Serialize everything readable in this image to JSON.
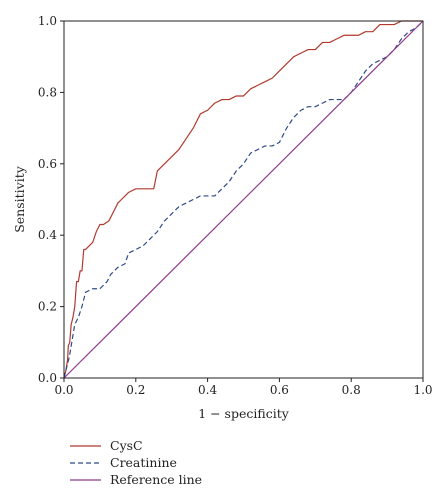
{
  "chart_data": {
    "type": "line",
    "xlabel": "1 − specificity",
    "ylabel": "Sensitivity",
    "xlim": [
      0,
      1
    ],
    "ylim": [
      0,
      1
    ],
    "xticks": [
      "0.0",
      "0.2",
      "0.4",
      "0.6",
      "0.8",
      "1.0"
    ],
    "yticks": [
      "0.0",
      "0.2",
      "0.4",
      "0.6",
      "0.8",
      "1.0"
    ],
    "grid": false,
    "legend_position": "bottom-left",
    "series": [
      {
        "name": "CysC",
        "color": "#b03a2e",
        "dash": "solid",
        "x": [
          0,
          0.005,
          0.01,
          0.012,
          0.016,
          0.02,
          0.025,
          0.03,
          0.035,
          0.04,
          0.045,
          0.05,
          0.055,
          0.06,
          0.07,
          0.08,
          0.09,
          0.1,
          0.11,
          0.125,
          0.14,
          0.15,
          0.16,
          0.18,
          0.2,
          0.22,
          0.25,
          0.26,
          0.28,
          0.3,
          0.32,
          0.34,
          0.36,
          0.38,
          0.4,
          0.42,
          0.44,
          0.46,
          0.48,
          0.5,
          0.52,
          0.54,
          0.56,
          0.58,
          0.6,
          0.62,
          0.64,
          0.66,
          0.68,
          0.7,
          0.72,
          0.74,
          0.76,
          0.78,
          0.8,
          0.82,
          0.84,
          0.86,
          0.88,
          0.9,
          0.92,
          0.94,
          0.96,
          0.98,
          1.0
        ],
        "y": [
          0,
          0.02,
          0.05,
          0.09,
          0.1,
          0.15,
          0.17,
          0.2,
          0.27,
          0.27,
          0.3,
          0.3,
          0.36,
          0.36,
          0.37,
          0.38,
          0.41,
          0.43,
          0.43,
          0.44,
          0.47,
          0.49,
          0.5,
          0.52,
          0.53,
          0.53,
          0.53,
          0.58,
          0.6,
          0.62,
          0.64,
          0.67,
          0.7,
          0.74,
          0.75,
          0.77,
          0.78,
          0.78,
          0.79,
          0.79,
          0.81,
          0.82,
          0.83,
          0.84,
          0.86,
          0.88,
          0.9,
          0.91,
          0.92,
          0.92,
          0.94,
          0.94,
          0.95,
          0.96,
          0.96,
          0.96,
          0.97,
          0.97,
          0.99,
          0.99,
          0.99,
          1.0,
          1.0,
          1.0,
          1.0
        ]
      },
      {
        "name": "Creatinine",
        "color": "#2e4a8a",
        "dash": "dashed",
        "x": [
          0,
          0.01,
          0.015,
          0.02,
          0.025,
          0.03,
          0.04,
          0.05,
          0.055,
          0.06,
          0.08,
          0.1,
          0.12,
          0.13,
          0.15,
          0.17,
          0.18,
          0.2,
          0.22,
          0.24,
          0.26,
          0.28,
          0.3,
          0.32,
          0.34,
          0.36,
          0.38,
          0.4,
          0.42,
          0.44,
          0.46,
          0.48,
          0.5,
          0.52,
          0.54,
          0.56,
          0.58,
          0.6,
          0.62,
          0.64,
          0.66,
          0.68,
          0.7,
          0.72,
          0.74,
          0.76,
          0.78,
          0.8,
          0.82,
          0.84,
          0.86,
          0.88,
          0.9,
          0.92,
          0.94,
          0.96,
          0.98,
          1.0
        ],
        "y": [
          0,
          0.04,
          0.06,
          0.09,
          0.12,
          0.15,
          0.17,
          0.2,
          0.22,
          0.24,
          0.25,
          0.25,
          0.27,
          0.29,
          0.31,
          0.32,
          0.35,
          0.36,
          0.37,
          0.39,
          0.41,
          0.44,
          0.46,
          0.48,
          0.49,
          0.5,
          0.51,
          0.51,
          0.51,
          0.53,
          0.55,
          0.58,
          0.6,
          0.63,
          0.64,
          0.65,
          0.65,
          0.66,
          0.7,
          0.73,
          0.75,
          0.76,
          0.76,
          0.77,
          0.78,
          0.78,
          0.78,
          0.8,
          0.83,
          0.86,
          0.88,
          0.89,
          0.9,
          0.92,
          0.95,
          0.97,
          0.98,
          1.0
        ]
      },
      {
        "name": "Reference line",
        "color": "#8e3a8c",
        "dash": "solid",
        "x": [
          0,
          1
        ],
        "y": [
          0,
          1
        ]
      }
    ]
  }
}
